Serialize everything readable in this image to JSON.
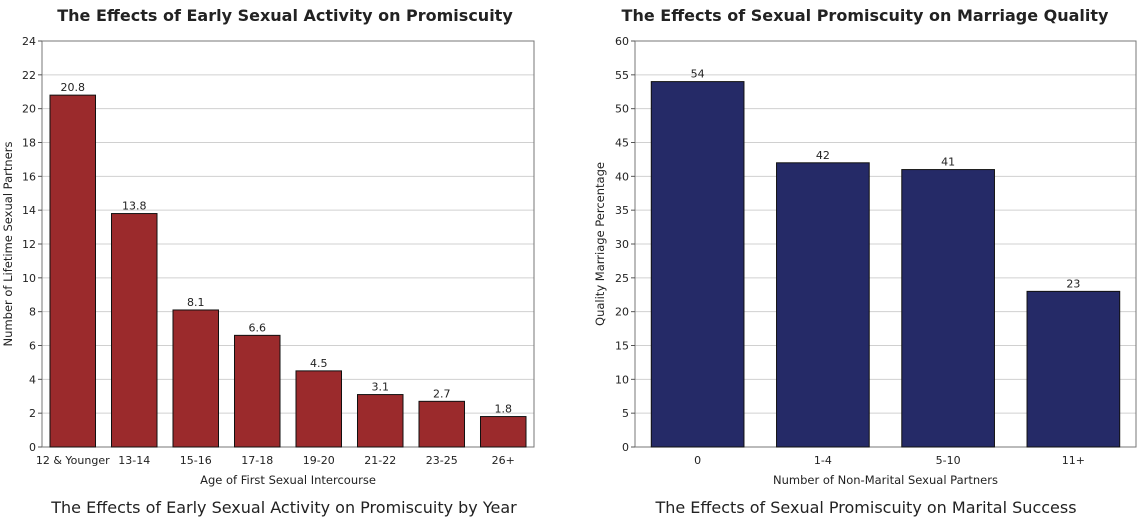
{
  "chart_data": [
    {
      "type": "bar",
      "title": "The Effects of Early Sexual Activity on Promiscuity",
      "caption": "The Effects of Early Sexual Activity on Promiscuity by Year",
      "xlabel": "Age of First Sexual Intercourse",
      "ylabel": "Number of Lifetime Sexual Partners",
      "categories": [
        "12 & Younger",
        "13-14",
        "15-16",
        "17-18",
        "19-20",
        "21-22",
        "23-25",
        "26+"
      ],
      "values": [
        20.8,
        13.8,
        8.1,
        6.6,
        4.5,
        3.1,
        2.7,
        1.8
      ],
      "data_labels": [
        "20.8",
        "13.8",
        "8.1",
        "6.6",
        "4.5",
        "3.1",
        "2.7",
        "1.8"
      ],
      "ylim": [
        0,
        24
      ],
      "yticks": [
        0,
        2,
        4,
        6,
        8,
        10,
        12,
        14,
        16,
        18,
        20,
        22,
        24
      ],
      "grid": true,
      "bar_color": "#9b2a2c"
    },
    {
      "type": "bar",
      "title": "The Effects of Sexual Promiscuity on Marriage Quality",
      "caption": "The Effects of Sexual Promiscuity on Marital Success",
      "xlabel": "Number of Non-Marital Sexual Partners",
      "ylabel": "Quality Marriage Percentage",
      "categories": [
        "0",
        "1-4",
        "5-10",
        "11+"
      ],
      "values": [
        54,
        42,
        41,
        23
      ],
      "data_labels": [
        "54",
        "42",
        "41",
        "23"
      ],
      "ylim": [
        0,
        60
      ],
      "yticks": [
        0,
        5,
        10,
        15,
        20,
        25,
        30,
        35,
        40,
        45,
        50,
        55,
        60
      ],
      "grid": true,
      "bar_color": "#252a67"
    }
  ]
}
